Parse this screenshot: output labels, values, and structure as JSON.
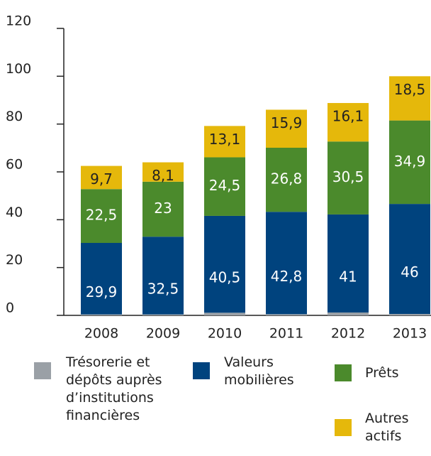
{
  "chart_data": {
    "type": "stacked_bar",
    "categories": [
      "2008",
      "2009",
      "2010",
      "2011",
      "2012",
      "2013"
    ],
    "series": [
      {
        "name": "Trésorerie et dépôts auprès d’institutions financières",
        "color": "#9aa0a6",
        "values": [
          0.4,
          0.4,
          1.1,
          0.5,
          1.2,
          0.6
        ]
      },
      {
        "name": "Valeurs mobilières",
        "color": "#00437e",
        "values": [
          29.9,
          32.5,
          40.5,
          42.8,
          41,
          46
        ],
        "value_labels": [
          "29,9",
          "32,5",
          "40,5",
          "42,8",
          "41",
          "46"
        ]
      },
      {
        "name": "Prêts",
        "color": "#4b8a2c",
        "values": [
          22.5,
          23,
          24.5,
          26.8,
          30.5,
          34.9
        ],
        "value_labels": [
          "22,5",
          "23",
          "24,5",
          "26,8",
          "30,5",
          "34,9"
        ]
      },
      {
        "name": "Autres actifs",
        "color": "#e5b80b",
        "values": [
          9.7,
          8.1,
          13.1,
          15.9,
          16.1,
          18.5
        ],
        "value_labels": [
          "9,7",
          "8,1",
          "13,1",
          "15,9",
          "16,1",
          "18,5"
        ]
      }
    ],
    "ylim": [
      0,
      120
    ],
    "yticks": [
      0,
      20,
      40,
      60,
      80,
      100,
      120
    ],
    "grid": false
  }
}
